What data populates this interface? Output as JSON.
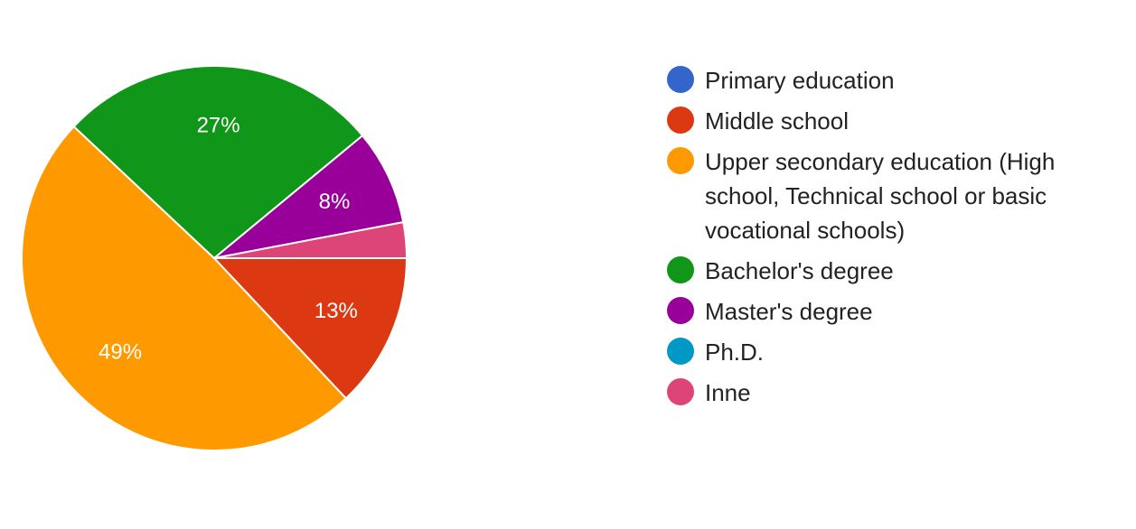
{
  "chart_data": {
    "type": "pie",
    "title": "",
    "legend_position": "right",
    "slices": [
      {
        "name": "Primary education",
        "value": 0,
        "color": "#3366cc",
        "label": ""
      },
      {
        "name": "Middle school",
        "value": 13,
        "color": "#dc3912",
        "label": "13%"
      },
      {
        "name": "Upper secondary education (High school, Technical school or basic vocational schools)",
        "value": 49,
        "color": "#ff9900",
        "label": "49%"
      },
      {
        "name": "Bachelor's degree",
        "value": 27,
        "color": "#109618",
        "label": "27%"
      },
      {
        "name": "Master's degree",
        "value": 8,
        "color": "#990099",
        "label": "8%"
      },
      {
        "name": "Ph.D.",
        "value": 0,
        "color": "#0099c6",
        "label": ""
      },
      {
        "name": "Inne",
        "value": 3,
        "color": "#dd4477",
        "label": ""
      }
    ]
  }
}
